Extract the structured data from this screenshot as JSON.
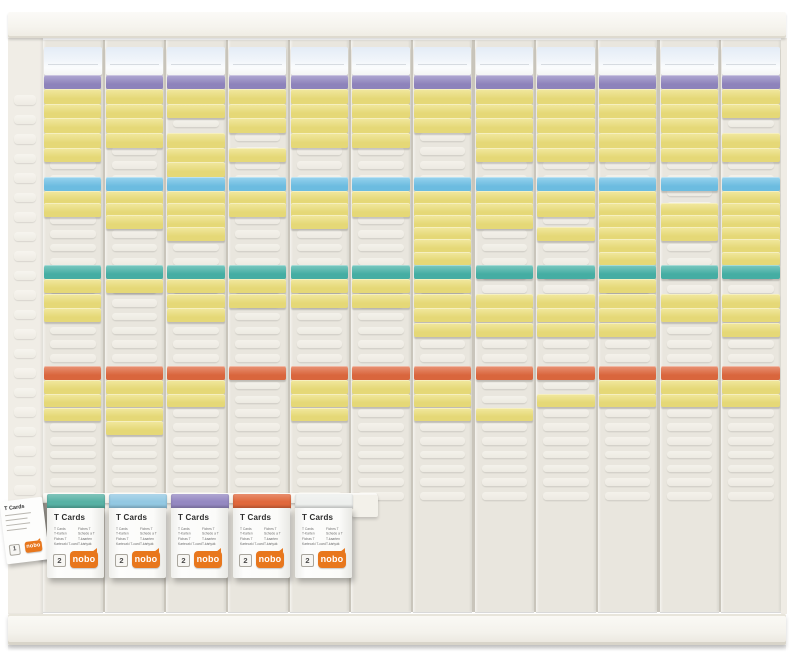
{
  "photo": {
    "subject": "Nobo T-Card planning board",
    "description": "Wall planner board with 12 slotted columns holding coloured T-cards, with refill card boxes clipped along the bottom rail",
    "brand": "nobo"
  },
  "board": {
    "columns_count": 12,
    "colors": {
      "purple": "#9287c1",
      "yellow": "#ecdf7b",
      "blue": "#70c2e7",
      "teal": "#47b3a8",
      "orange": "#e0693f",
      "panel": "#e9e6de",
      "frame": "#f0ede6",
      "header_card_top": "#e4ecf6",
      "header_card_bottom": "#fbfcfd"
    },
    "columns": [
      {
        "cards": [
          [
            1,
            "purple"
          ],
          [
            2,
            "yellow"
          ],
          [
            3,
            "yellow"
          ],
          [
            4,
            "yellow"
          ],
          [
            5,
            "yellow"
          ],
          [
            6,
            "yellow"
          ],
          [
            8,
            "blue"
          ],
          [
            9,
            "yellow"
          ],
          [
            10,
            "yellow"
          ],
          [
            15,
            "teal"
          ],
          [
            16,
            "yellow"
          ],
          [
            17,
            "yellow"
          ],
          [
            18,
            "yellow"
          ],
          [
            22,
            "orange"
          ],
          [
            23,
            "yellow"
          ],
          [
            24,
            "yellow"
          ],
          [
            25,
            "yellow"
          ]
        ]
      },
      {
        "cards": [
          [
            1,
            "purple"
          ],
          [
            2,
            "yellow"
          ],
          [
            3,
            "yellow"
          ],
          [
            4,
            "yellow"
          ],
          [
            5,
            "yellow"
          ],
          [
            8,
            "blue"
          ],
          [
            9,
            "yellow"
          ],
          [
            10,
            "yellow"
          ],
          [
            11,
            "yellow"
          ],
          [
            15,
            "teal"
          ],
          [
            16,
            "yellow"
          ],
          [
            22,
            "orange"
          ],
          [
            23,
            "yellow"
          ],
          [
            24,
            "yellow"
          ],
          [
            25,
            "yellow"
          ],
          [
            26,
            "yellow"
          ]
        ]
      },
      {
        "cards": [
          [
            1,
            "purple"
          ],
          [
            2,
            "yellow"
          ],
          [
            3,
            "yellow"
          ],
          [
            5,
            "yellow"
          ],
          [
            6,
            "yellow"
          ],
          [
            7,
            "yellow"
          ],
          [
            8,
            "blue"
          ],
          [
            9,
            "yellow"
          ],
          [
            10,
            "yellow"
          ],
          [
            11,
            "yellow"
          ],
          [
            12,
            "yellow"
          ],
          [
            15,
            "teal"
          ],
          [
            16,
            "yellow"
          ],
          [
            17,
            "yellow"
          ],
          [
            18,
            "yellow"
          ],
          [
            22,
            "orange"
          ],
          [
            23,
            "yellow"
          ],
          [
            24,
            "yellow"
          ]
        ]
      },
      {
        "cards": [
          [
            1,
            "purple"
          ],
          [
            2,
            "yellow"
          ],
          [
            3,
            "yellow"
          ],
          [
            4,
            "yellow"
          ],
          [
            6,
            "yellow"
          ],
          [
            8,
            "blue"
          ],
          [
            9,
            "yellow"
          ],
          [
            10,
            "yellow"
          ],
          [
            15,
            "teal"
          ],
          [
            16,
            "yellow"
          ],
          [
            17,
            "yellow"
          ],
          [
            22,
            "orange"
          ]
        ]
      },
      {
        "cards": [
          [
            1,
            "purple"
          ],
          [
            2,
            "yellow"
          ],
          [
            3,
            "yellow"
          ],
          [
            4,
            "yellow"
          ],
          [
            5,
            "yellow"
          ],
          [
            8,
            "blue"
          ],
          [
            9,
            "yellow"
          ],
          [
            10,
            "yellow"
          ],
          [
            11,
            "yellow"
          ],
          [
            15,
            "teal"
          ],
          [
            16,
            "yellow"
          ],
          [
            17,
            "yellow"
          ],
          [
            22,
            "orange"
          ],
          [
            23,
            "yellow"
          ],
          [
            24,
            "yellow"
          ],
          [
            25,
            "yellow"
          ]
        ]
      },
      {
        "cards": [
          [
            1,
            "purple"
          ],
          [
            2,
            "yellow"
          ],
          [
            3,
            "yellow"
          ],
          [
            4,
            "yellow"
          ],
          [
            5,
            "yellow"
          ],
          [
            8,
            "blue"
          ],
          [
            9,
            "yellow"
          ],
          [
            10,
            "yellow"
          ],
          [
            15,
            "teal"
          ],
          [
            16,
            "yellow"
          ],
          [
            17,
            "yellow"
          ],
          [
            22,
            "orange"
          ],
          [
            23,
            "yellow"
          ],
          [
            24,
            "yellow"
          ]
        ]
      },
      {
        "cards": [
          [
            1,
            "purple"
          ],
          [
            2,
            "yellow"
          ],
          [
            3,
            "yellow"
          ],
          [
            4,
            "yellow"
          ],
          [
            8,
            "blue"
          ],
          [
            9,
            "yellow"
          ],
          [
            10,
            "yellow"
          ],
          [
            11,
            "yellow"
          ],
          [
            12,
            "yellow"
          ],
          [
            13,
            "yellow"
          ],
          [
            14,
            "yellow"
          ],
          [
            15,
            "teal"
          ],
          [
            16,
            "yellow"
          ],
          [
            17,
            "yellow"
          ],
          [
            18,
            "yellow"
          ],
          [
            19,
            "yellow"
          ],
          [
            22,
            "orange"
          ],
          [
            23,
            "yellow"
          ],
          [
            24,
            "yellow"
          ],
          [
            25,
            "yellow"
          ]
        ]
      },
      {
        "cards": [
          [
            1,
            "purple"
          ],
          [
            2,
            "yellow"
          ],
          [
            3,
            "yellow"
          ],
          [
            4,
            "yellow"
          ],
          [
            5,
            "yellow"
          ],
          [
            6,
            "yellow"
          ],
          [
            8,
            "blue"
          ],
          [
            9,
            "yellow"
          ],
          [
            10,
            "yellow"
          ],
          [
            11,
            "yellow"
          ],
          [
            15,
            "teal"
          ],
          [
            17,
            "yellow"
          ],
          [
            18,
            "yellow"
          ],
          [
            19,
            "yellow"
          ],
          [
            22,
            "orange"
          ],
          [
            25,
            "yellow"
          ]
        ]
      },
      {
        "cards": [
          [
            1,
            "purple"
          ],
          [
            2,
            "yellow"
          ],
          [
            3,
            "yellow"
          ],
          [
            4,
            "yellow"
          ],
          [
            5,
            "yellow"
          ],
          [
            6,
            "yellow"
          ],
          [
            8,
            "blue"
          ],
          [
            9,
            "yellow"
          ],
          [
            10,
            "yellow"
          ],
          [
            12,
            "yellow"
          ],
          [
            15,
            "teal"
          ],
          [
            17,
            "yellow"
          ],
          [
            18,
            "yellow"
          ],
          [
            19,
            "yellow"
          ],
          [
            22,
            "orange"
          ],
          [
            24,
            "yellow"
          ]
        ]
      },
      {
        "cards": [
          [
            1,
            "purple"
          ],
          [
            2,
            "yellow"
          ],
          [
            3,
            "yellow"
          ],
          [
            4,
            "yellow"
          ],
          [
            5,
            "yellow"
          ],
          [
            6,
            "yellow"
          ],
          [
            8,
            "blue"
          ],
          [
            9,
            "yellow"
          ],
          [
            10,
            "yellow"
          ],
          [
            11,
            "yellow"
          ],
          [
            12,
            "yellow"
          ],
          [
            13,
            "yellow"
          ],
          [
            14,
            "yellow"
          ],
          [
            15,
            "teal"
          ],
          [
            16,
            "yellow"
          ],
          [
            17,
            "yellow"
          ],
          [
            18,
            "yellow"
          ],
          [
            19,
            "yellow"
          ],
          [
            22,
            "orange"
          ],
          [
            23,
            "yellow"
          ],
          [
            24,
            "yellow"
          ]
        ]
      },
      {
        "cards": [
          [
            1,
            "purple"
          ],
          [
            2,
            "yellow"
          ],
          [
            3,
            "yellow"
          ],
          [
            4,
            "yellow"
          ],
          [
            5,
            "yellow"
          ],
          [
            6,
            "yellow"
          ],
          [
            8,
            "blue"
          ],
          [
            10,
            "yellow"
          ],
          [
            11,
            "yellow"
          ],
          [
            12,
            "yellow"
          ],
          [
            15,
            "teal"
          ],
          [
            17,
            "yellow"
          ],
          [
            18,
            "yellow"
          ],
          [
            22,
            "orange"
          ],
          [
            23,
            "yellow"
          ],
          [
            24,
            "yellow"
          ]
        ]
      },
      {
        "cards": [
          [
            1,
            "purple"
          ],
          [
            2,
            "yellow"
          ],
          [
            3,
            "yellow"
          ],
          [
            5,
            "yellow"
          ],
          [
            6,
            "yellow"
          ],
          [
            8,
            "blue"
          ],
          [
            9,
            "yellow"
          ],
          [
            10,
            "yellow"
          ],
          [
            11,
            "yellow"
          ],
          [
            12,
            "yellow"
          ],
          [
            13,
            "yellow"
          ],
          [
            14,
            "yellow"
          ],
          [
            15,
            "teal"
          ],
          [
            17,
            "yellow"
          ],
          [
            18,
            "yellow"
          ],
          [
            19,
            "yellow"
          ],
          [
            22,
            "orange"
          ],
          [
            23,
            "yellow"
          ],
          [
            24,
            "yellow"
          ]
        ]
      }
    ]
  },
  "refill": {
    "box_text": {
      "title": "T Cards",
      "languages_left": [
        "T Cards",
        "T-Karten",
        "Fichas T",
        "Karteczki T-card"
      ],
      "languages_right": [
        "Fiches T",
        "Schede a T",
        "T-kaarten",
        "T-kártyák"
      ],
      "brand": "nobo"
    },
    "cap_colors": {
      "teal": "#57b1a4",
      "blue": "#93c8e2",
      "purple": "#9488c1",
      "orange": "#e0683c",
      "white": "#edefed"
    },
    "boxes": [
      {
        "cap": "teal",
        "size": "2"
      },
      {
        "cap": "blue",
        "size": "2"
      },
      {
        "cap": "purple",
        "size": "2"
      },
      {
        "cap": "orange",
        "size": "2"
      },
      {
        "cap": "white",
        "size": "2"
      }
    ],
    "small_pack": {
      "title": "T Cards",
      "size": "1",
      "brand": "nobo"
    }
  }
}
